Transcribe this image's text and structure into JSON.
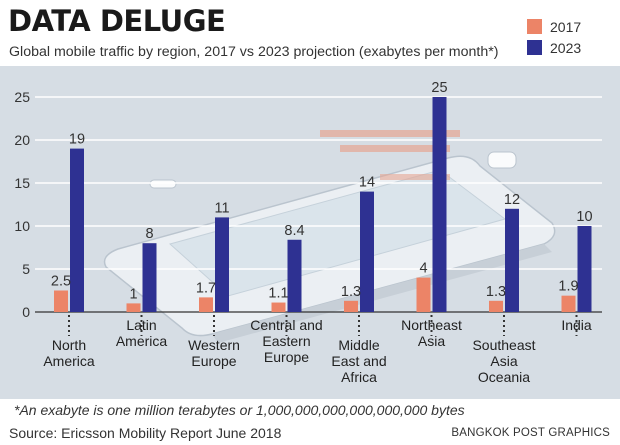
{
  "headline": "DATA DELUGE",
  "footnote": "*An exabyte is one million terabytes or 1,000,000,000,000,000,000 bytes",
  "source": "Source: Ericsson Mobility Report June 2018",
  "credit": "BANGKOK POST GRAPHICS",
  "colors": {
    "series_2017": "#ec8467",
    "series_2023": "#2e3192",
    "background": "#d6dde4",
    "gridline": "#ffffff"
  },
  "chart_data": {
    "type": "bar",
    "title": "Global mobile traffic by region, 2017 vs 2023 projection (exabytes per month*)",
    "categories": [
      [
        "North",
        "America"
      ],
      [
        "Latin",
        "America"
      ],
      [
        "Western",
        "Europe"
      ],
      [
        "Central and",
        "Eastern",
        "Europe"
      ],
      [
        "Middle",
        "East and",
        "Africa"
      ],
      [
        "Northeast",
        "Asia"
      ],
      [
        "Southeast",
        "Asia",
        "Oceania"
      ],
      [
        "India"
      ]
    ],
    "series": [
      {
        "name": "2017",
        "values": [
          2.5,
          1,
          1.7,
          1.1,
          1.3,
          4,
          1.3,
          1.9
        ],
        "labels": [
          "2.5",
          "1",
          "1.7",
          "1.1",
          "1.3",
          "4",
          "1.3",
          "1.9"
        ]
      },
      {
        "name": "2023",
        "values": [
          19,
          8,
          11,
          8.4,
          14,
          25,
          12,
          10
        ],
        "labels": [
          "19",
          "8",
          "11",
          "8.4",
          "14",
          "25",
          "12",
          "10"
        ]
      }
    ],
    "y_ticks": [
      "0",
      "5",
      "10",
      "15",
      "20",
      "25"
    ],
    "ylim": [
      0,
      25
    ],
    "grid": true,
    "legend": "top-right"
  }
}
